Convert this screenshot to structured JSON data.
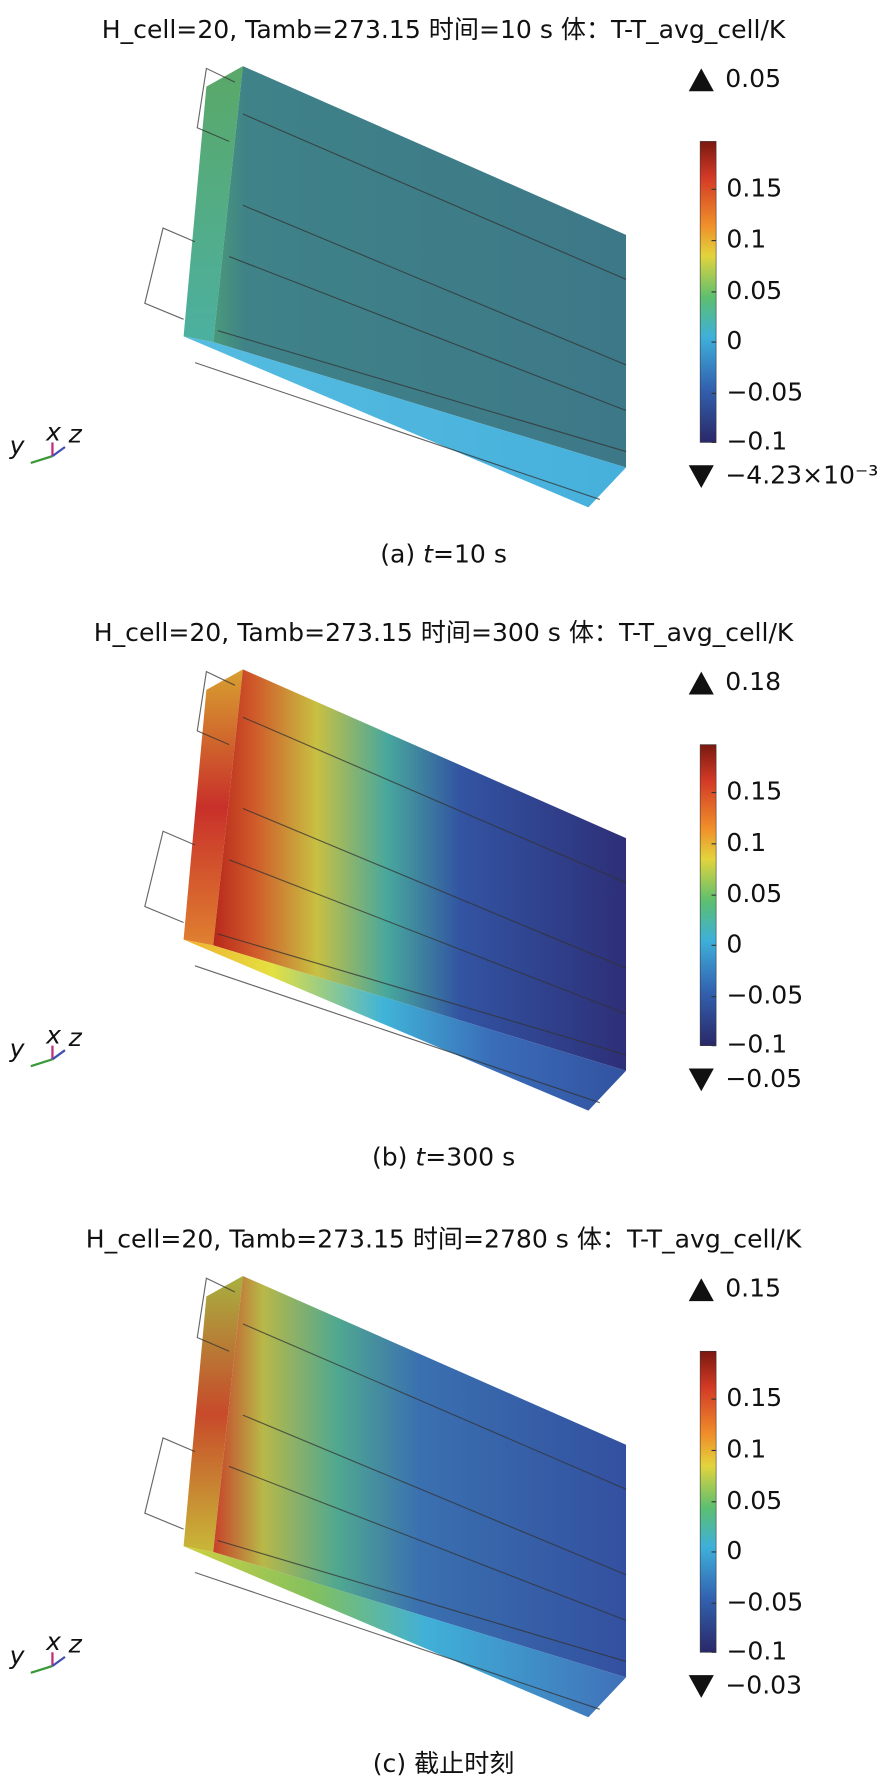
{
  "panels": [
    {
      "title": "H_cell=20, Tamb=273.15 时间=10 s 体：T-T_avg_cell/K",
      "max_label": "0.05",
      "min_label": "−4.23×10⁻³",
      "colorbar_ticks": [
        "0.15",
        "0.1",
        "0.05",
        "0",
        "−0.05",
        "−0.1"
      ],
      "axes": [
        "y",
        "x",
        "z"
      ],
      "caption": [
        "(a) ",
        "t",
        "=10 s"
      ]
    },
    {
      "title": "H_cell=20, Tamb=273.15 时间=300 s 体：T-T_avg_cell/K",
      "max_label": "0.18",
      "min_label": "−0.05",
      "colorbar_ticks": [
        "0.15",
        "0.1",
        "0.05",
        "0",
        "−0.05",
        "−0.1"
      ],
      "axes": [
        "y",
        "x",
        "z"
      ],
      "caption": [
        "(b) ",
        "t",
        "=300 s"
      ]
    },
    {
      "title": "H_cell=20, Tamb=273.15 时间=2780 s 体：T-T_avg_cell/K",
      "max_label": "0.15",
      "min_label": "−0.03",
      "colorbar_ticks": [
        "0.15",
        "0.1",
        "0.05",
        "0",
        "−0.05",
        "−0.1"
      ],
      "axes": [
        "y",
        "x",
        "z"
      ],
      "caption": [
        "(c) 截止时刻"
      ]
    }
  ]
}
